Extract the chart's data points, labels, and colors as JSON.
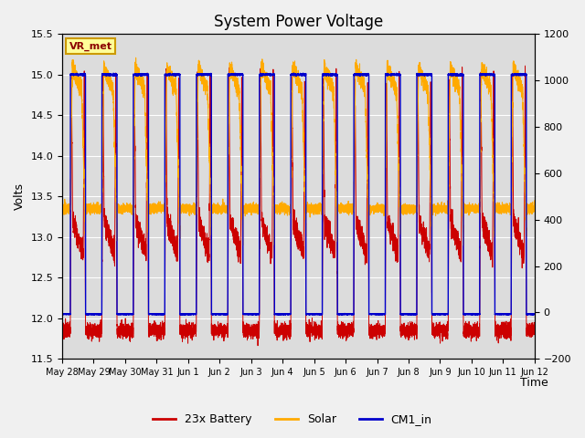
{
  "title": "System Power Voltage",
  "xlabel": "Time",
  "ylabel_left": "Volts",
  "ylim_left": [
    11.5,
    15.5
  ],
  "ylim_right": [
    -200,
    1200
  ],
  "background_color": "#dcdcdc",
  "fig_facecolor": "#f0f0f0",
  "color_battery": "#cc0000",
  "color_solar": "#ffaa00",
  "color_cm1": "#0000cc",
  "annotation_text": "VR_met",
  "annotation_box_color": "#ffff99",
  "annotation_border_color": "#cc9900",
  "x_tick_labels": [
    "May 28",
    "May 29",
    "May 30",
    "May 31",
    "Jun 1",
    "Jun 2",
    "Jun 3",
    "Jun 4",
    "Jun 5",
    "Jun 6",
    "Jun 7",
    "Jun 8",
    "Jun 9",
    "Jun 10",
    "Jun 11",
    "Jun 12"
  ],
  "legend_entries": [
    "23x Battery",
    "Solar",
    "CM1_in"
  ],
  "title_fontsize": 12,
  "axis_fontsize": 9,
  "tick_fontsize": 8
}
